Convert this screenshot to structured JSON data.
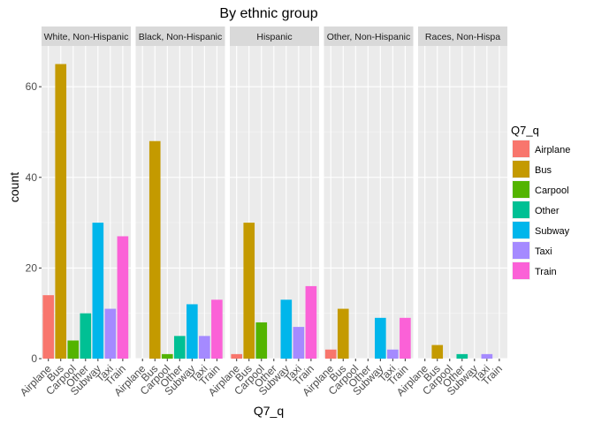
{
  "chart_data": {
    "type": "bar",
    "title": "By ethnic group",
    "xlabel": "Q7_q",
    "ylabel": "count",
    "ylim": [
      0,
      69
    ],
    "yticks": [
      0,
      20,
      40,
      60
    ],
    "grid": true,
    "legend_position": "right",
    "legend_title": "Q7_q",
    "categories": [
      "Airplane",
      "Bus",
      "Carpool",
      "Other",
      "Subway",
      "Taxi",
      "Train"
    ],
    "colors": [
      "#F8766D",
      "#C49A00",
      "#53B400",
      "#00C094",
      "#00B6EB",
      "#A58AFF",
      "#FB61D7"
    ],
    "panels": [
      {
        "name": "White, Non-Hispanic",
        "strip_label": "White, Non-Hispanic",
        "values": [
          14,
          65,
          4,
          10,
          30,
          11,
          27
        ]
      },
      {
        "name": "Black, Non-Hispanic",
        "strip_label": "Black, Non-Hispanic",
        "values": [
          0,
          48,
          1,
          5,
          12,
          5,
          13
        ]
      },
      {
        "name": "Hispanic",
        "strip_label": "Hispanic",
        "values": [
          1,
          30,
          8,
          0,
          13,
          7,
          16
        ]
      },
      {
        "name": "Other, Non-Hispanic",
        "strip_label": "Other, Non-Hispanic",
        "values": [
          2,
          11,
          0,
          0,
          9,
          2,
          9
        ]
      },
      {
        "name": "Races, Non-Hispanic",
        "strip_label": "Races, Non-Hispa",
        "values": [
          0,
          3,
          0,
          1,
          0,
          1,
          0
        ]
      }
    ]
  }
}
